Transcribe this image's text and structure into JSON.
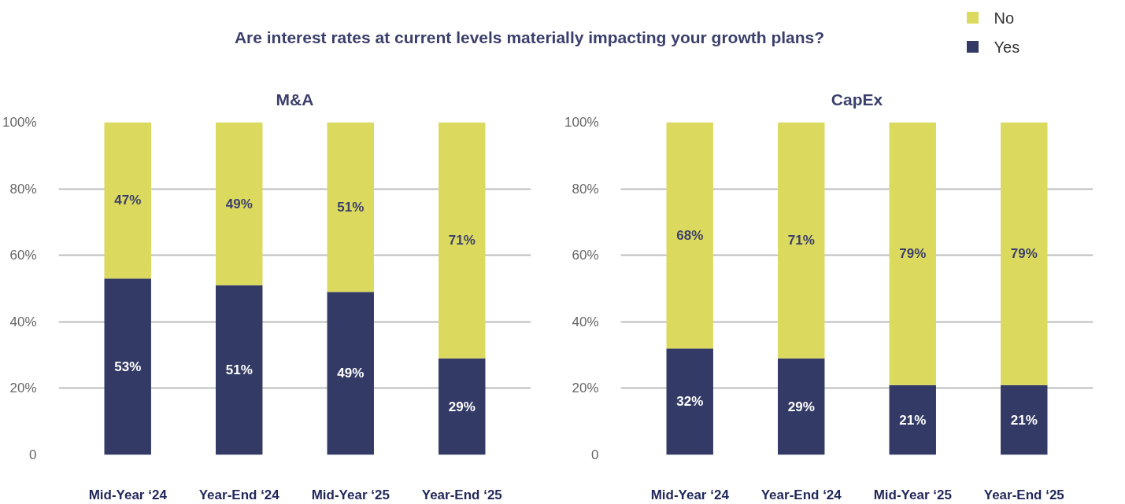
{
  "chart_data": [
    {
      "type": "bar",
      "title": "Are interest rates at current levels materially impacting your growth plans?",
      "subtitle": "M&A",
      "stacked": true,
      "legend": "top right",
      "categories": [
        "Mid-Year ‘24",
        "Year-End ‘24",
        "Mid-Year ‘25",
        "Year-End ‘25"
      ],
      "series": [
        {
          "name": "Yes",
          "color": "#333a65",
          "values": [
            53,
            51,
            49,
            29
          ],
          "value_labels": [
            "53%",
            "51%",
            "49%",
            "29%"
          ]
        },
        {
          "name": "No",
          "color": "#dcd95f",
          "values": [
            47,
            49,
            51,
            71
          ],
          "value_labels": [
            "47%",
            "49%",
            "51%",
            "71%"
          ]
        }
      ],
      "ylim": [
        0,
        100
      ],
      "yticks": [
        0,
        {
          "value": 20,
          "label": "20%"
        },
        {
          "value": 40,
          "label": "40%"
        },
        {
          "value": 60,
          "label": "60%"
        },
        {
          "value": 80,
          "label": "80%"
        },
        {
          "value": 100,
          "label": "100%"
        }
      ],
      "grid": "y"
    },
    {
      "type": "bar",
      "title": "CapEx",
      "stacked": true,
      "categories": [
        "Mid-Year ‘24",
        "Year-End ‘24",
        "Mid-Year ‘25",
        "Year-End ‘25"
      ],
      "series": [
        {
          "color": "#333a65",
          "values": [
            32,
            29,
            21,
            21
          ],
          "value_labels": [
            "32%",
            "29%",
            "21%",
            "21%"
          ]
        },
        {
          "color": "#dcd95f",
          "values": [
            68,
            71,
            79,
            79
          ],
          "value_labels": [
            "68%",
            "71%",
            "79%",
            "79%"
          ]
        }
      ],
      "ylim": [
        0,
        100
      ],
      "yticks": [
        0,
        {
          "value": 20,
          "label": "20%"
        },
        {
          "value": 40,
          "label": "40%"
        },
        {
          "value": 60,
          "label": "60%"
        },
        {
          "value": 80,
          "label": "80%"
        },
        {
          "value": 100,
          "label": "100%"
        }
      ],
      "grid": "y"
    }
  ]
}
